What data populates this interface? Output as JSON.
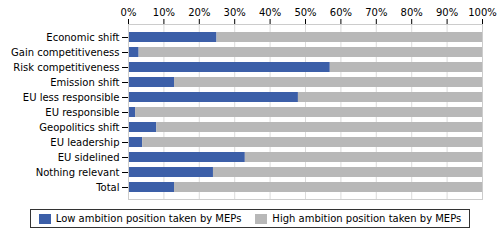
{
  "chart_data": {
    "type": "bar",
    "orientation": "horizontal",
    "stacked": true,
    "categories": [
      "Economic shift",
      "Gain competitiveness",
      "Risk competitiveness",
      "Emission shift",
      "EU less responsible",
      "EU responsible",
      "Geopolitics shift",
      "EU leadership",
      "EU sidelined",
      "Nothing relevant",
      "Total"
    ],
    "series": [
      {
        "name": "Low ambition position taken by MEPs",
        "color": "#3c5fa8",
        "values": [
          25,
          3,
          57,
          13,
          48,
          2,
          8,
          4,
          33,
          24,
          13
        ]
      },
      {
        "name": "High ambition position taken by MEPs",
        "color": "#b8b8b8",
        "values": [
          75,
          97,
          43,
          87,
          52,
          98,
          92,
          96,
          67,
          76,
          87
        ]
      }
    ],
    "xlim": [
      0,
      100
    ],
    "xticks": [
      {
        "value": 0,
        "label": "0%"
      },
      {
        "value": 10,
        "label": "10%"
      },
      {
        "value": 20,
        "label": "20%"
      },
      {
        "value": 30,
        "label": "30%"
      },
      {
        "value": 40,
        "label": "40%"
      },
      {
        "value": 50,
        "label": "50%"
      },
      {
        "value": 60,
        "label": "60%"
      },
      {
        "value": 70,
        "label": "70%"
      },
      {
        "value": 80,
        "label": "80%"
      },
      {
        "value": 90,
        "label": "90%"
      },
      {
        "value": 100,
        "label": "100%"
      }
    ],
    "grid": true,
    "legend": "bottom"
  }
}
